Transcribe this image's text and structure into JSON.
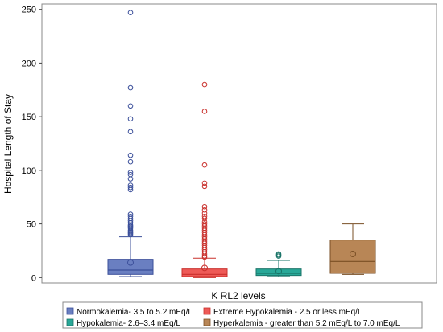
{
  "chart_data": {
    "type": "box",
    "title": "",
    "xlabel": "",
    "ylabel": "Hospital Length of Stay",
    "ylim": [
      -5,
      255
    ],
    "yticks": [
      0,
      50,
      100,
      150,
      200,
      250
    ],
    "grid": false,
    "legend": {
      "title": "K RL2 levels",
      "placement": "bottom",
      "entries": [
        "Normokalemia- 3.5 to 5.2 mEq/L",
        "Extreme Hypokalemia - 2.5 or less mEq/L",
        "Hypokalemia-  2.6–3.4 mEq/L",
        "Hyperkalemia - greater than 5.2 mEq/L to 7.0 mEq/L"
      ]
    },
    "series": [
      {
        "name": "Normokalemia- 3.5 to 5.2 mEq/L",
        "color": "#6a7fc1",
        "edge": "#3b4f9a",
        "whisker_low": 1,
        "q1": 3,
        "median": 7,
        "q3": 17,
        "whisker_high": 38,
        "mean": 14,
        "outliers": [
          247,
          177,
          160,
          148,
          136,
          114,
          108,
          98,
          96,
          92,
          86,
          84,
          82,
          59,
          57,
          55,
          53,
          51,
          49,
          48,
          47,
          46,
          44,
          43,
          42,
          41,
          40
        ]
      },
      {
        "name": "Extreme Hypokalemia - 2.5 or less mEq/L",
        "color": "#ee5a57",
        "edge": "#c9302c",
        "whisker_low": 0,
        "q1": 1,
        "median": 3,
        "q3": 8,
        "whisker_high": 18,
        "mean": 9,
        "outliers": [
          180,
          155,
          105,
          88,
          85,
          66,
          63,
          60,
          57,
          55,
          52,
          50,
          48,
          46,
          44,
          42,
          40,
          38,
          36,
          34,
          32,
          30,
          28,
          26,
          24,
          22,
          20,
          19
        ]
      },
      {
        "name": "Hypokalemia-  2.6–3.4 mEq/L",
        "color": "#29a898",
        "edge": "#1a7468",
        "whisker_low": 1,
        "q1": 2,
        "median": 4,
        "q3": 8,
        "whisker_high": 16,
        "mean": 6,
        "outliers": [
          22,
          21,
          20
        ]
      },
      {
        "name": "Hyperkalemia - greater than 5.2 mEq/L to 7.0 mEq/L",
        "color": "#b88656",
        "edge": "#7a4f25",
        "whisker_low": 3,
        "q1": 4,
        "median": 15,
        "q3": 35,
        "whisker_high": 50,
        "mean": 22,
        "outliers": []
      }
    ]
  }
}
